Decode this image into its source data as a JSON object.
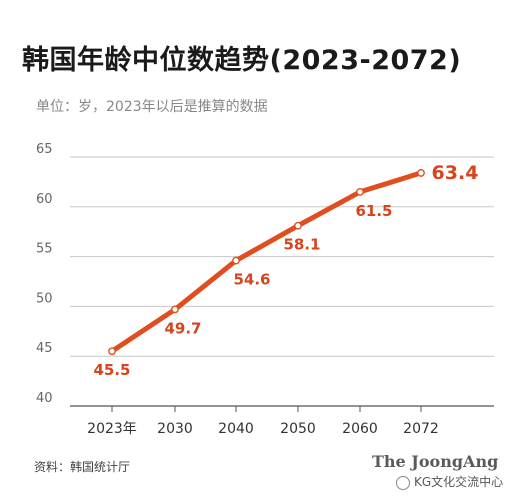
{
  "chart_data": {
    "type": "line",
    "title": "韩国年龄中位数趋势(2023-2072)",
    "subtitle": "单位：岁，2023年以后是推算的数据",
    "categories": [
      "2023年",
      "2030",
      "2040",
      "2050",
      "2060",
      "2072"
    ],
    "series": [
      {
        "values": [
          45.5,
          49.7,
          54.6,
          58.1,
          61.5,
          63.4
        ]
      }
    ],
    "data_labels": [
      "45.5",
      "49.7",
      "54.6",
      "58.1",
      "61.5",
      "63.4"
    ],
    "ylim": [
      40,
      65
    ],
    "yticks": [
      40,
      45,
      50,
      55,
      60,
      65
    ],
    "grid": true,
    "legend": "none",
    "line_color": "#e04e1f",
    "label_color": "#d6451d"
  },
  "footer": {
    "source": "资料：韩国统计厅",
    "logo": "The JoongAng",
    "watermark": "KG文化交流中心"
  },
  "icons": {
    "watermark_icon": "wechat-icon"
  }
}
